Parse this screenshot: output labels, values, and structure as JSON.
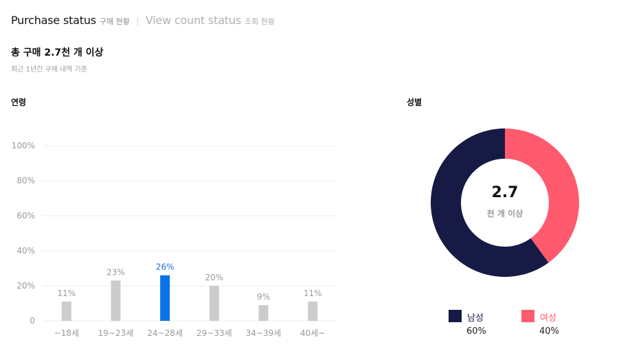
{
  "tabs": [
    {
      "label": "Purchase status",
      "sub": "구매 현황",
      "active": true
    },
    {
      "label": "View count status",
      "sub": "조회 현황",
      "active": false
    }
  ],
  "summary": {
    "title": "총 구매 2.7천 개 이상",
    "subtitle": "최근 1년간 구매 내역 기준"
  },
  "colors": {
    "bar_default": "#cccccc",
    "bar_highlight": "#0a72e8",
    "highlight_text": "#1a6fe0",
    "male": "#161a45",
    "female": "#ff5a6e",
    "grid": "#eeeeee"
  },
  "chart_data": [
    {
      "type": "bar",
      "title": "연령",
      "categories": [
        "~18세",
        "19~23세",
        "24~28세",
        "29~33세",
        "34~39세",
        "40세~"
      ],
      "values": [
        11,
        23,
        26,
        20,
        9,
        11
      ],
      "value_labels": [
        "11%",
        "23%",
        "26%",
        "20%",
        "9%",
        "11%"
      ],
      "highlight_index": 2,
      "ylim": [
        0,
        100
      ],
      "yticks": [
        0,
        20,
        40,
        60,
        80,
        100
      ],
      "ytick_labels": [
        "0",
        "20%",
        "40%",
        "60%",
        "80%",
        "100%"
      ],
      "grid": true
    },
    {
      "type": "pie",
      "title": "성별",
      "donut": true,
      "center_value": "2.7",
      "center_label": "천 개 이상",
      "labels": [
        "남성",
        "여성"
      ],
      "values": [
        60,
        40
      ],
      "value_labels": [
        "60%",
        "40%"
      ],
      "legend": "bottom"
    }
  ]
}
